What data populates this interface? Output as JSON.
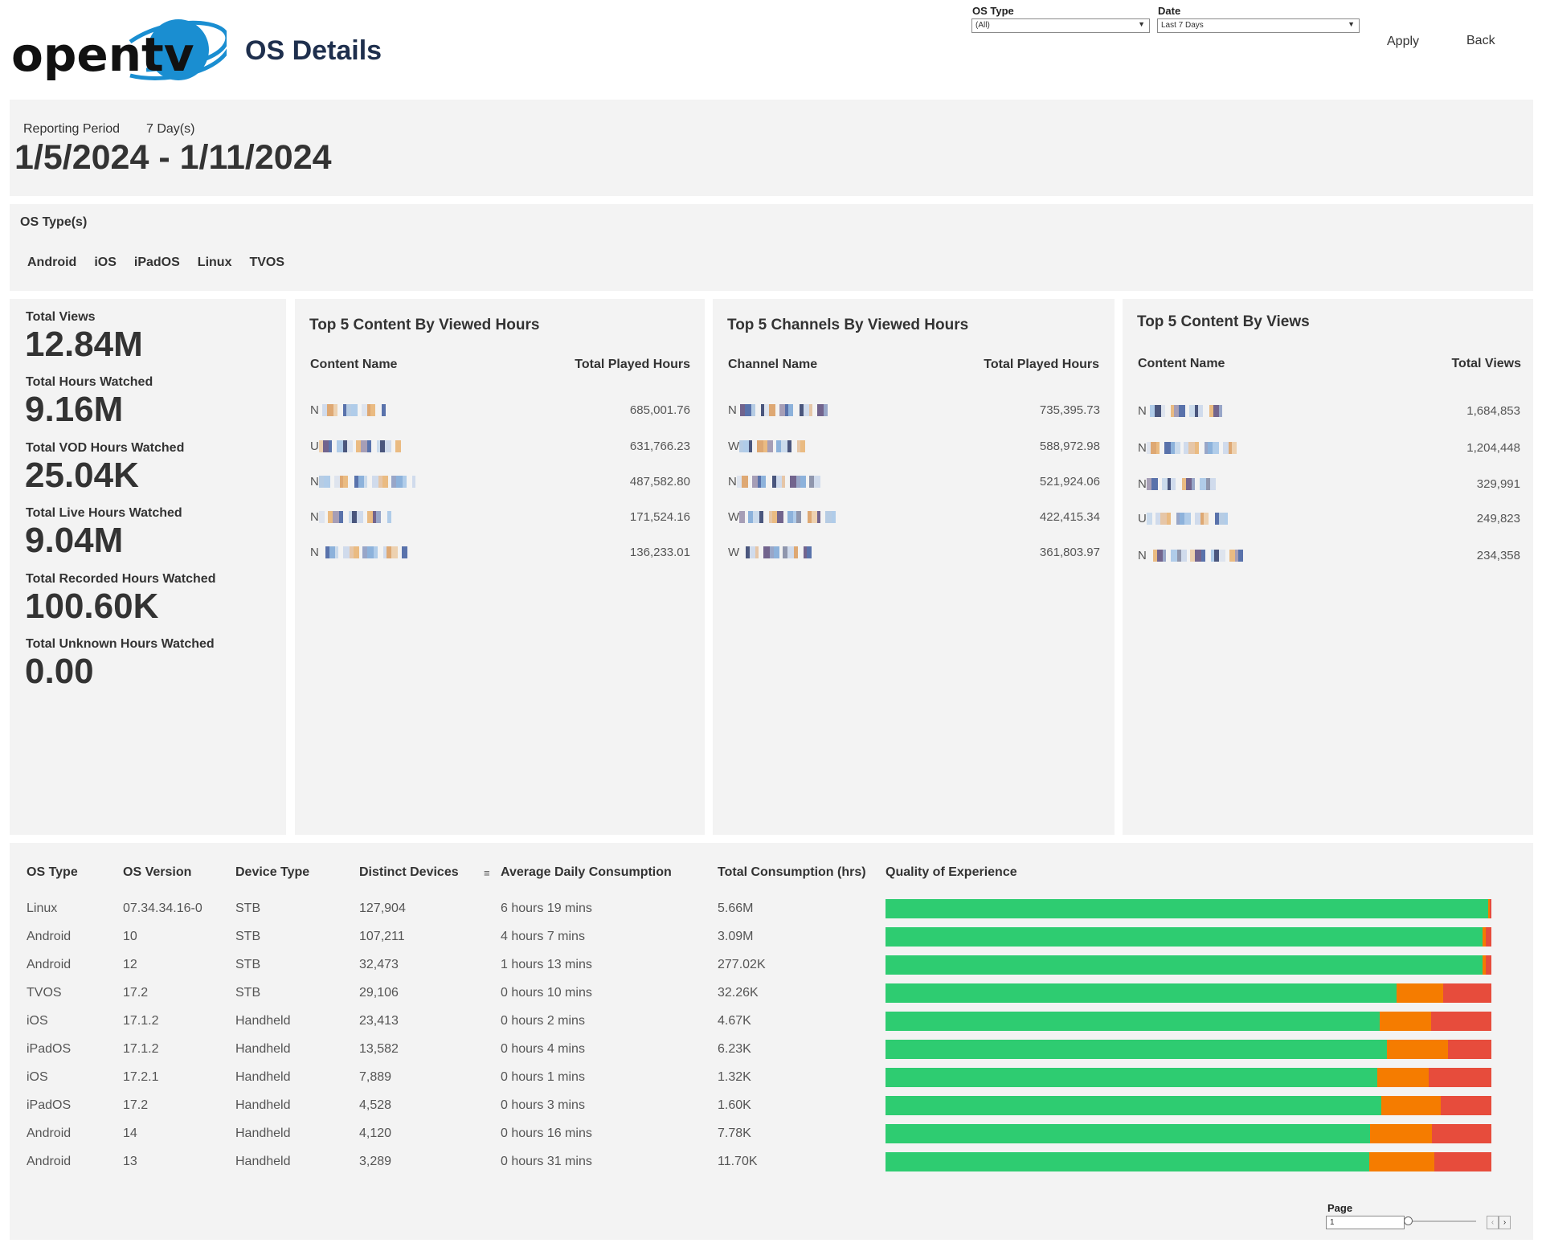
{
  "header": {
    "logo_text": "opentv",
    "title": "OS Details",
    "filters": {
      "os_type": {
        "label": "OS Type",
        "value": "(All)"
      },
      "date": {
        "label": "Date",
        "value": "Last 7 Days"
      }
    },
    "apply_label": "Apply",
    "back_label": "Back"
  },
  "reporting": {
    "label": "Reporting Period",
    "days": "7 Day(s)",
    "range": "1/5/2024 - 1/11/2024"
  },
  "os_types": {
    "label": "OS Type(s)",
    "items": [
      "Android",
      "iOS",
      "iPadOS",
      "Linux",
      "TVOS"
    ]
  },
  "kpis": [
    {
      "label": "Total Views",
      "value": "12.84M"
    },
    {
      "label": "Total Hours Watched",
      "value": "9.16M"
    },
    {
      "label": "Total VOD Hours Watched",
      "value": "25.04K"
    },
    {
      "label": "Total Live Hours Watched",
      "value": "9.04M"
    },
    {
      "label": "Total Recorded Hours Watched",
      "value": "100.60K"
    },
    {
      "label": "Total Unknown Hours Watched",
      "value": "0.00"
    }
  ],
  "cards": [
    {
      "title": "Top 5 Content By Viewed Hours",
      "col1": "Content Name",
      "col2": "Total Played Hours",
      "rows": [
        {
          "prefix": "N",
          "value": "685,001.76"
        },
        {
          "prefix": "U",
          "value": "631,766.23"
        },
        {
          "prefix": "N",
          "value": "487,582.80"
        },
        {
          "prefix": "N",
          "value": "171,524.16"
        },
        {
          "prefix": "N",
          "value": "136,233.01"
        }
      ]
    },
    {
      "title": "Top 5 Channels By Viewed Hours",
      "col1": "Channel Name",
      "col2": "Total Played Hours",
      "rows": [
        {
          "prefix": "N",
          "value": "735,395.73"
        },
        {
          "prefix": "W",
          "value": "588,972.98"
        },
        {
          "prefix": "N",
          "value": "521,924.06"
        },
        {
          "prefix": "W",
          "value": "422,415.34"
        },
        {
          "prefix": "W",
          "value": "361,803.97"
        }
      ]
    },
    {
      "title": "Top 5 Content By Views",
      "col1": "Content Name",
      "col2": "Total Views",
      "rows": [
        {
          "prefix": "N",
          "value": "1,684,853"
        },
        {
          "prefix": "N",
          "value": "1,204,448"
        },
        {
          "prefix": "N",
          "value": "329,991"
        },
        {
          "prefix": "U",
          "value": "249,823"
        },
        {
          "prefix": "N",
          "value": "234,358"
        }
      ]
    }
  ],
  "table": {
    "headers": [
      "OS Type",
      "OS Version",
      "Device Type",
      "Distinct Devices",
      "Average Daily Consumption",
      "Total Consumption (hrs)",
      "Quality of Experience"
    ],
    "rows": [
      {
        "os": "Linux",
        "ver": "07.34.34.16-0",
        "dev": "STB",
        "distinct": "127,904",
        "avg": "6 hours 19 mins",
        "total": "5.66M",
        "qoe": [
          0.995,
          0.003,
          0.002
        ]
      },
      {
        "os": "Android",
        "ver": "10",
        "dev": "STB",
        "distinct": "107,211",
        "avg": "4 hours 7 mins",
        "total": "3.09M",
        "qoe": [
          0.985,
          0.006,
          0.009
        ]
      },
      {
        "os": "Android",
        "ver": "12",
        "dev": "STB",
        "distinct": "32,473",
        "avg": "1 hours 13 mins",
        "total": "277.02K",
        "qoe": [
          0.985,
          0.006,
          0.009
        ]
      },
      {
        "os": "TVOS",
        "ver": "17.2",
        "dev": "STB",
        "distinct": "29,106",
        "avg": "0 hours 10 mins",
        "total": "32.26K",
        "qoe": [
          0.843,
          0.077,
          0.08
        ]
      },
      {
        "os": "iOS",
        "ver": "17.1.2",
        "dev": "Handheld",
        "distinct": "23,413",
        "avg": "0 hours 2 mins",
        "total": "4.67K",
        "qoe": [
          0.815,
          0.085,
          0.1
        ]
      },
      {
        "os": "iPadOS",
        "ver": "17.1.2",
        "dev": "Handheld",
        "distinct": "13,582",
        "avg": "0 hours 4 mins",
        "total": "6.23K",
        "qoe": [
          0.827,
          0.102,
          0.071
        ]
      },
      {
        "os": "iOS",
        "ver": "17.2.1",
        "dev": "Handheld",
        "distinct": "7,889",
        "avg": "0 hours 1 mins",
        "total": "1.32K",
        "qoe": [
          0.812,
          0.085,
          0.103
        ]
      },
      {
        "os": "iPadOS",
        "ver": "17.2",
        "dev": "Handheld",
        "distinct": "4,528",
        "avg": "0 hours 3 mins",
        "total": "1.60K",
        "qoe": [
          0.818,
          0.098,
          0.084
        ]
      },
      {
        "os": "Android",
        "ver": "14",
        "dev": "Handheld",
        "distinct": "4,120",
        "avg": "0 hours 16 mins",
        "total": "7.78K",
        "qoe": [
          0.8,
          0.102,
          0.098
        ]
      },
      {
        "os": "Android",
        "ver": "13",
        "dev": "Handheld",
        "distinct": "3,289",
        "avg": "0 hours 31 mins",
        "total": "11.70K",
        "qoe": [
          0.799,
          0.107,
          0.094
        ]
      }
    ]
  },
  "qoe_colors": {
    "good": "#2ecc71",
    "fair": "#f57c00",
    "poor": "#e74c3c"
  },
  "pager": {
    "label": "Page",
    "value": "1"
  }
}
